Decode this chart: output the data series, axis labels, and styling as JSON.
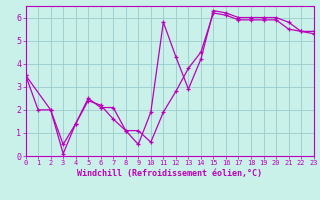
{
  "xlabel": "Windchill (Refroidissement éolien,°C)",
  "ylabel": "",
  "bg_color": "#caf0ea",
  "line_color": "#bb00bb",
  "grid_color": "#99cccc",
  "line1_x": [
    0,
    1,
    2,
    3,
    4,
    5,
    6,
    7,
    8,
    9,
    10,
    11,
    12,
    13,
    14,
    15,
    16,
    17,
    18,
    19,
    20,
    21,
    22,
    23
  ],
  "line1_y": [
    3.5,
    2.0,
    2.0,
    0.5,
    1.4,
    2.4,
    2.2,
    1.6,
    1.1,
    0.5,
    1.9,
    5.8,
    4.3,
    2.9,
    4.2,
    6.3,
    6.2,
    6.0,
    6.0,
    6.0,
    6.0,
    5.8,
    5.4,
    5.3
  ],
  "line2_x": [
    0,
    2,
    3,
    4,
    5,
    6,
    7,
    8,
    9,
    10,
    11,
    12,
    13,
    14,
    15,
    16,
    17,
    18,
    19,
    20,
    21,
    22,
    23
  ],
  "line2_y": [
    3.5,
    2.0,
    0.1,
    1.4,
    2.5,
    2.1,
    2.1,
    1.1,
    1.1,
    0.6,
    1.9,
    2.8,
    3.8,
    4.5,
    6.2,
    6.1,
    5.9,
    5.9,
    5.9,
    5.9,
    5.5,
    5.4,
    5.4
  ],
  "xlim": [
    0,
    23
  ],
  "ylim": [
    0,
    6.5
  ],
  "xticks": [
    0,
    1,
    2,
    3,
    4,
    5,
    6,
    7,
    8,
    9,
    10,
    11,
    12,
    13,
    14,
    15,
    16,
    17,
    18,
    19,
    20,
    21,
    22,
    23
  ],
  "yticks": [
    0,
    1,
    2,
    3,
    4,
    5,
    6
  ]
}
